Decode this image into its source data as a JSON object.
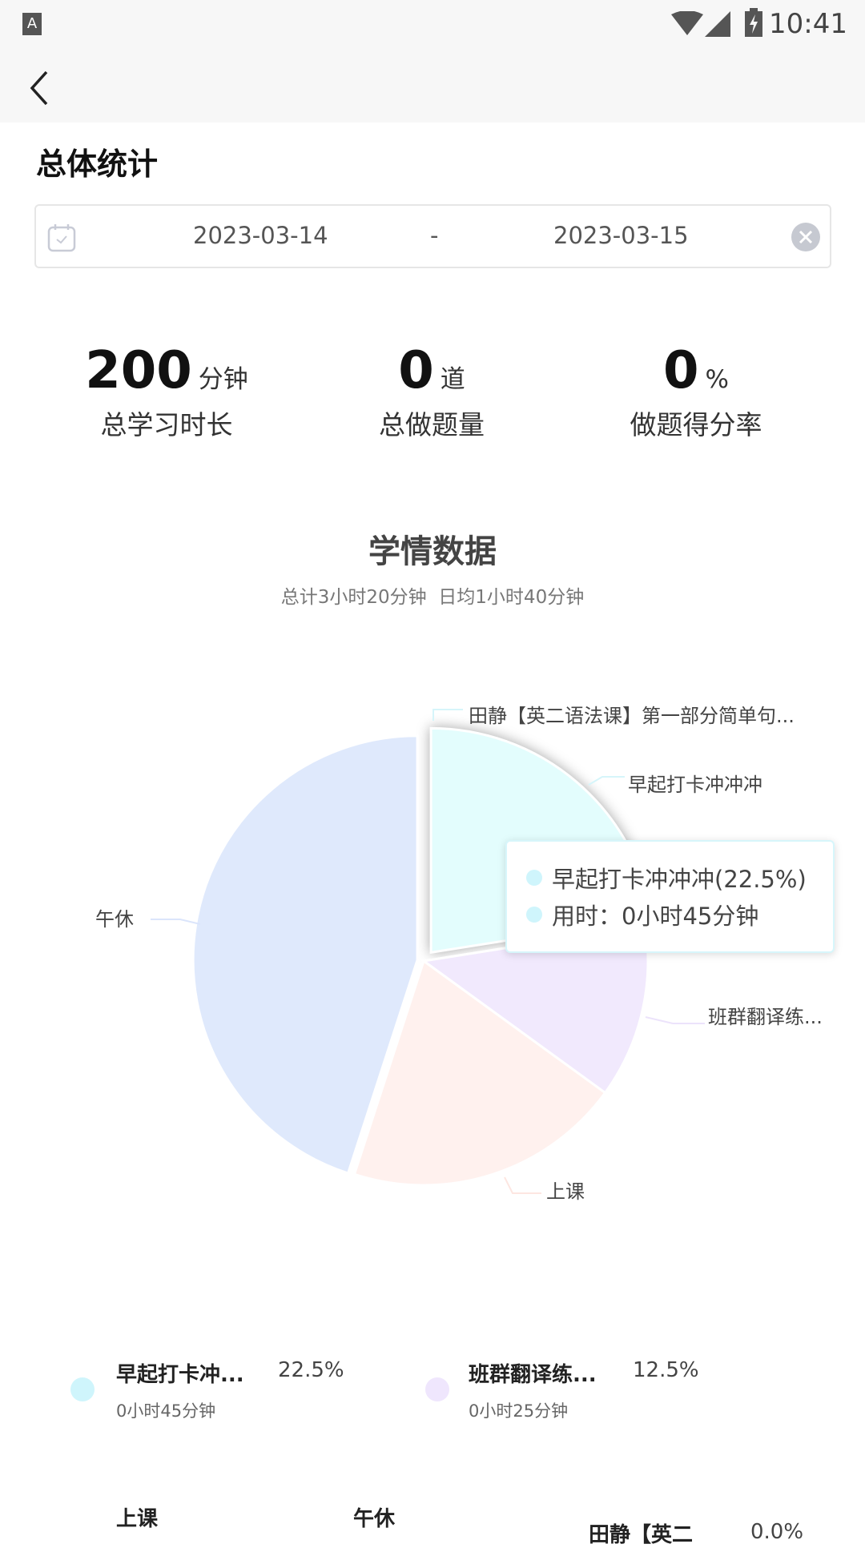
{
  "status_bar": {
    "time": "10:41",
    "left_icon": "app-a-icon",
    "icons": [
      "wifi-icon",
      "signal-icon",
      "battery-charging-icon"
    ]
  },
  "nav": {
    "back_icon": "chevron-left-icon"
  },
  "page_title": "总体统计",
  "date_range": {
    "start": "2023-03-14",
    "separator": "-",
    "end": "2023-03-15",
    "calendar_icon": "calendar-icon",
    "clear_icon": "clear-circle-icon"
  },
  "stats": [
    {
      "value": "200",
      "unit": "分钟",
      "label": "总学习时长"
    },
    {
      "value": "0",
      "unit": "道",
      "label": "总做题量"
    },
    {
      "value": "0",
      "unit": "%",
      "label": "做题得分率"
    }
  ],
  "section": {
    "title": "学情数据",
    "subtitle": "总计3小时20分钟  日均1小时40分钟"
  },
  "chart_data": {
    "type": "pie",
    "slices": [
      {
        "name": "早起打卡冲冲冲",
        "label": "早起打卡冲冲冲",
        "minutes": 45,
        "percent": 22.5,
        "color": "#e3fdfd",
        "selected": true
      },
      {
        "name": "班群翻译练习",
        "label": "班群翻译练...",
        "minutes": 25,
        "percent": 12.5,
        "color": "#f1e9fd"
      },
      {
        "name": "上课",
        "label": "上课",
        "minutes": 40,
        "percent": 20.0,
        "color": "#fff1ee"
      },
      {
        "name": "午休",
        "label": "午休",
        "minutes": 90,
        "percent": 45.0,
        "color": "#dfe9fc"
      },
      {
        "name": "田静【英二语法课】第一部分简单句",
        "label": "田静【英二语法课】第一部分简单句...",
        "minutes": 0,
        "percent": 0.0,
        "color": "#dff7fb"
      }
    ],
    "tooltip": {
      "line1": "早起打卡冲冲冲(22.5%)",
      "line2": "用时：0小时45分钟"
    }
  },
  "legend": [
    {
      "name": "早起打卡冲...",
      "percent": "22.5%",
      "time": "0小时45分钟",
      "color": "#cff5fc"
    },
    {
      "name": "班群翻译练...",
      "percent": "12.5%",
      "time": "0小时25分钟",
      "color": "#efe6fd"
    },
    {
      "name": "上课"
    },
    {
      "name": "午休"
    },
    {
      "name": "田静【英二",
      "percent": "0.0%"
    }
  ]
}
